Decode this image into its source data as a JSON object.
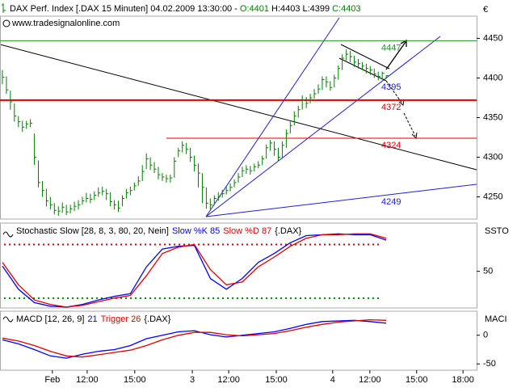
{
  "chart_data": [
    {
      "type": "ohlc",
      "title": "DAX Perf. Index [.DAX 15 Minuten] 04.02.2009 13:30:00 -",
      "quote": [
        "O:4401",
        "H:4403",
        "L:4399",
        "C:4403"
      ],
      "subtitle": "www.tradesignalonline.com",
      "y_label": "€",
      "color": "#008000",
      "ylim": [
        4222,
        4478
      ],
      "yticks": [
        4250,
        4300,
        4350,
        4400,
        4450
      ],
      "close": [
        4401,
        4385,
        4370,
        4352,
        4345,
        4338,
        4342,
        4343,
        4300,
        4268,
        4258,
        4245,
        4240,
        4233,
        4232,
        4237,
        4231,
        4235,
        4238,
        4240,
        4245,
        4248,
        4247,
        4252,
        4255,
        4257,
        4254,
        4244,
        4240,
        4236,
        4248,
        4255,
        4258,
        4264,
        4270,
        4282,
        4298,
        4290,
        4285,
        4278,
        4275,
        4273,
        4274,
        4295,
        4308,
        4315,
        4310,
        4300,
        4290,
        4280,
        4262,
        4242,
        4240,
        4248,
        4250,
        4254,
        4258,
        4262,
        4268,
        4275,
        4283,
        4285,
        4283,
        4288,
        4290,
        4298,
        4312,
        4318,
        4310,
        4300,
        4315,
        4330,
        4340,
        4352,
        4360,
        4372,
        4368,
        4375,
        4380,
        4386,
        4398,
        4395,
        4388,
        4400,
        4412,
        4425,
        4430,
        4427,
        4420,
        4418,
        4415,
        4412,
        4410,
        4405,
        4402,
        4406,
        4403
      ],
      "high": [
        4410,
        4402,
        4384,
        4368,
        4352,
        4346,
        4346,
        4348,
        4330,
        4296,
        4270,
        4260,
        4250,
        4242,
        4238,
        4243,
        4240,
        4240,
        4244,
        4246,
        4250,
        4255,
        4254,
        4257,
        4262,
        4263,
        4260,
        4256,
        4246,
        4245,
        4252,
        4260,
        4263,
        4268,
        4276,
        4290,
        4305,
        4300,
        4294,
        4288,
        4280,
        4278,
        4278,
        4300,
        4312,
        4320,
        4318,
        4312,
        4302,
        4292,
        4280,
        4262,
        4248,
        4252,
        4256,
        4259,
        4263,
        4267,
        4272,
        4280,
        4288,
        4290,
        4289,
        4292,
        4295,
        4302,
        4316,
        4322,
        4320,
        4312,
        4320,
        4335,
        4345,
        4358,
        4365,
        4378,
        4376,
        4380,
        4386,
        4392,
        4402,
        4402,
        4396,
        4404,
        4416,
        4430,
        4436,
        4434,
        4428,
        4424,
        4420,
        4418,
        4415,
        4412,
        4408,
        4408,
        4403
      ],
      "low": [
        4392,
        4380,
        4360,
        4345,
        4338,
        4332,
        4336,
        4338,
        4290,
        4262,
        4250,
        4238,
        4234,
        4228,
        4226,
        4230,
        4227,
        4229,
        4232,
        4234,
        4240,
        4243,
        4242,
        4246,
        4250,
        4252,
        4246,
        4238,
        4234,
        4231,
        4238,
        4248,
        4252,
        4258,
        4264,
        4270,
        4285,
        4284,
        4280,
        4272,
        4270,
        4268,
        4268,
        4274,
        4300,
        4306,
        4304,
        4294,
        4282,
        4262,
        4242,
        4235,
        4234,
        4240,
        4245,
        4249,
        4253,
        4257,
        4262,
        4268,
        4275,
        4279,
        4278,
        4282,
        4286,
        4290,
        4298,
        4308,
        4302,
        4295,
        4298,
        4312,
        4330,
        4340,
        4350,
        4360,
        4362,
        4368,
        4374,
        4380,
        4385,
        4388,
        4384,
        4388,
        4398,
        4410,
        4422,
        4420,
        4414,
        4412,
        4410,
        4406,
        4404,
        4400,
        4397,
        4398,
        4399
      ],
      "levels": [
        {
          "value": 4447,
          "color": "#2e8b2e"
        },
        {
          "value": 4372,
          "color": "#e00000"
        },
        {
          "value": 4324,
          "color": "#e00000",
          "x0": 41
        }
      ],
      "trend_labels": [
        4395,
        4249
      ]
    },
    {
      "type": "line",
      "title": "Stochastic Slow [28, 8, 3, 80, 20, Nein]",
      "source": "{.DAX}",
      "y_label": "SSTO",
      "ylim": [
        9,
        104
      ],
      "yticks": [
        50
      ],
      "levels": [
        {
          "value": 80,
          "color": "#e00000"
        },
        {
          "value": 20,
          "color": "#008000"
        }
      ],
      "x": [
        0,
        4,
        8,
        12,
        16,
        20,
        24,
        28,
        32,
        36,
        40,
        44,
        48,
        52,
        56,
        60,
        64,
        68,
        72,
        76,
        80,
        84,
        88,
        92,
        96
      ],
      "series": [
        {
          "name": "Slow %K 85",
          "color": "#0000ff",
          "values": [
            56,
            30,
            15,
            11,
            10,
            13,
            18,
            22,
            25,
            55,
            75,
            78,
            79,
            42,
            30,
            42,
            60,
            70,
            82,
            90,
            91,
            92,
            91,
            91,
            85
          ]
        },
        {
          "name": "Slow %D 87",
          "color": "#e00000",
          "values": [
            60,
            35,
            18,
            13,
            10,
            12,
            16,
            20,
            23,
            45,
            70,
            77,
            80,
            52,
            35,
            38,
            55,
            66,
            78,
            87,
            91,
            91,
            92,
            92,
            87
          ]
        }
      ]
    },
    {
      "type": "line",
      "title": "MACD [12, 26, 9]",
      "source": "{.DAX}",
      "y_label": "MACI",
      "ylim": [
        -61,
        42
      ],
      "yticks": [
        0,
        -50
      ],
      "x": [
        0,
        4,
        8,
        12,
        16,
        20,
        24,
        28,
        32,
        36,
        40,
        44,
        48,
        52,
        56,
        60,
        64,
        68,
        72,
        76,
        80,
        84,
        88,
        92,
        96
      ],
      "xlim": [
        -0.6,
        118.6
      ],
      "xticks": [
        {
          "value": 12.5,
          "label": "Feb"
        },
        {
          "value": 21.2,
          "label": "12:00"
        },
        {
          "value": 33.1,
          "label": "15:00"
        },
        {
          "value": 47.5,
          "label": "3"
        },
        {
          "value": 56.6,
          "label": "12:00"
        },
        {
          "value": 68.5,
          "label": "15:00"
        },
        {
          "value": 82.6,
          "label": "4"
        },
        {
          "value": 91.9,
          "label": "12:00"
        },
        {
          "value": 103.6,
          "label": "15:00"
        },
        {
          "value": 115.2,
          "label": "18:00"
        }
      ],
      "series": [
        {
          "name": "21",
          "color": "#0000ff",
          "values": [
            -8,
            -15,
            -25,
            -36,
            -40,
            -33,
            -28,
            -25,
            -18,
            -6,
            0,
            6,
            8,
            1,
            -3,
            0,
            3,
            6,
            12,
            19,
            24,
            25,
            26,
            24,
            21
          ]
        },
        {
          "name": "Trigger 26",
          "color": "#e00000",
          "values": [
            -5,
            -10,
            -18,
            -28,
            -36,
            -38,
            -34,
            -30,
            -26,
            -18,
            -8,
            0,
            5,
            5,
            1,
            -1,
            1,
            3,
            8,
            14,
            19,
            23,
            25,
            27,
            26
          ]
        }
      ]
    }
  ]
}
